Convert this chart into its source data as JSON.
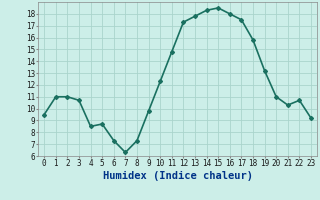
{
  "x": [
    0,
    1,
    2,
    3,
    4,
    5,
    6,
    7,
    8,
    9,
    10,
    11,
    12,
    13,
    14,
    15,
    16,
    17,
    18,
    19,
    20,
    21,
    22,
    23
  ],
  "y": [
    9.5,
    11.0,
    11.0,
    10.7,
    8.5,
    8.7,
    7.3,
    6.3,
    7.3,
    9.8,
    12.3,
    14.8,
    17.3,
    17.8,
    18.3,
    18.5,
    18.0,
    17.5,
    15.8,
    13.2,
    11.0,
    10.3,
    10.7,
    9.2
  ],
  "line_color": "#1a7060",
  "marker": "D",
  "marker_size": 2.0,
  "background_color": "#cceee8",
  "grid_color": "#aad4cc",
  "xlabel": "Humidex (Indice chaleur)",
  "ylim": [
    6,
    19
  ],
  "xlim": [
    -0.5,
    23.5
  ],
  "yticks": [
    6,
    7,
    8,
    9,
    10,
    11,
    12,
    13,
    14,
    15,
    16,
    17,
    18
  ],
  "xticks": [
    0,
    1,
    2,
    3,
    4,
    5,
    6,
    7,
    8,
    9,
    10,
    11,
    12,
    13,
    14,
    15,
    16,
    17,
    18,
    19,
    20,
    21,
    22,
    23
  ],
  "xtick_labels": [
    "0",
    "1",
    "2",
    "3",
    "4",
    "5",
    "6",
    "7",
    "8",
    "9",
    "10",
    "11",
    "12",
    "13",
    "14",
    "15",
    "16",
    "17",
    "18",
    "19",
    "20",
    "21",
    "22",
    "23"
  ],
  "xlabel_fontsize": 7.5,
  "tick_fontsize": 5.5,
  "line_width": 1.2
}
